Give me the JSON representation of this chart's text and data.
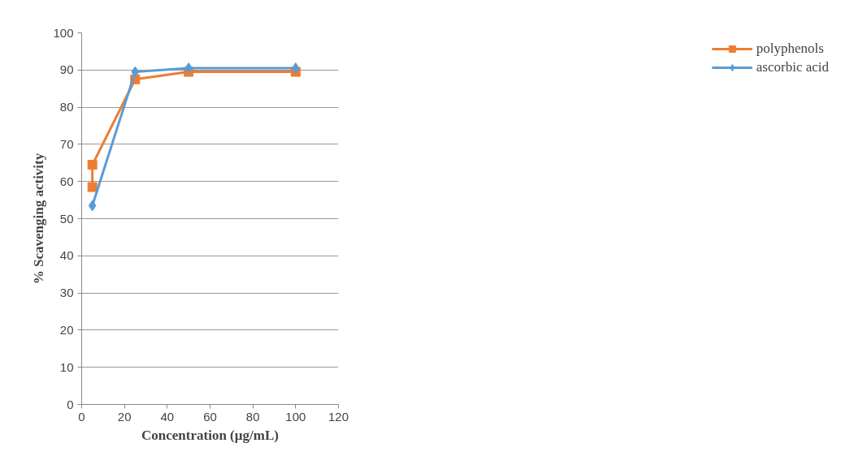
{
  "chart_data": {
    "type": "line",
    "xlabel": "Concentration (µg/mL)",
    "ylabel": "% Scavenging activity",
    "xlim": [
      0,
      120
    ],
    "xticks": [
      0,
      20,
      40,
      60,
      80,
      100,
      120
    ],
    "ylim": [
      0,
      100
    ],
    "yticks": [
      0,
      10,
      20,
      30,
      40,
      50,
      60,
      70,
      80,
      90,
      100
    ],
    "grid": "y",
    "legend": "right",
    "series": [
      {
        "name": "polyphenols",
        "color": "#ed7d31",
        "marker": "square",
        "x": [
          5,
          5,
          25,
          50,
          100
        ],
        "values": [
          58.5,
          64.5,
          87.5,
          89.5,
          89.5
        ]
      },
      {
        "name": "ascorbic acid",
        "color": "#5b9bd5",
        "marker": "diamond",
        "x": [
          5,
          25,
          50,
          100
        ],
        "values": [
          53.5,
          89.5,
          90.5,
          90.5
        ]
      }
    ]
  }
}
